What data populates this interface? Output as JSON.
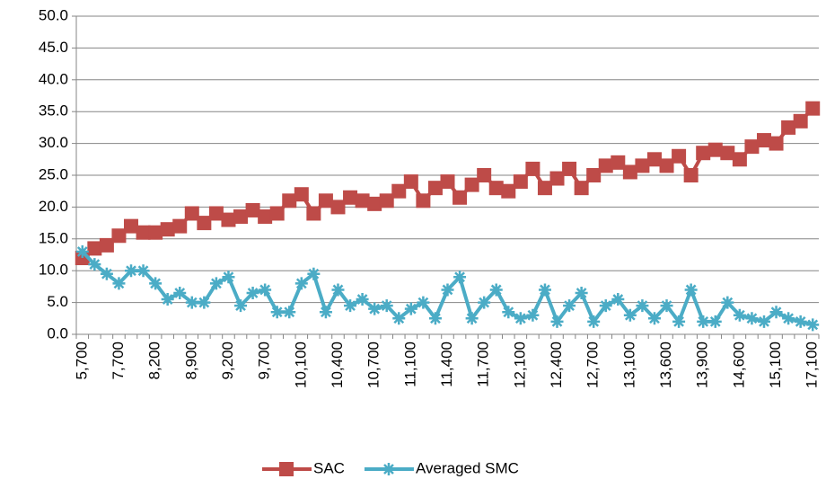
{
  "chart_data": {
    "type": "line",
    "categories": [
      "5,700",
      null,
      null,
      "7,700",
      null,
      null,
      "8,200",
      null,
      null,
      "8,900",
      null,
      null,
      "9,200",
      null,
      null,
      "9,700",
      null,
      null,
      "10,100",
      null,
      null,
      "10,400",
      null,
      null,
      "10,700",
      null,
      null,
      "11,100",
      null,
      null,
      "11,400",
      null,
      null,
      "11,700",
      null,
      null,
      "12,100",
      null,
      null,
      "12,400",
      null,
      null,
      "12,700",
      null,
      null,
      "13,100",
      null,
      null,
      "13,600",
      null,
      null,
      "13,900",
      null,
      null,
      "14,600",
      null,
      null,
      "15,100",
      null,
      null,
      "17,100"
    ],
    "series": [
      {
        "name": "SAC",
        "color": "#be4b48",
        "marker": "square",
        "values": [
          12,
          13.5,
          14,
          15.5,
          17,
          16,
          16,
          16.5,
          17,
          19,
          17.5,
          19,
          18,
          18.5,
          19.5,
          18.5,
          19,
          21,
          22,
          19,
          21,
          20,
          21.5,
          21,
          20.5,
          21,
          22.5,
          24,
          21,
          23,
          24,
          21.5,
          23.5,
          25,
          23,
          22.5,
          24,
          26,
          23,
          24.5,
          26,
          23,
          25,
          26.5,
          27,
          25.5,
          26.5,
          27.5,
          26.5,
          28,
          25,
          28.5,
          29,
          28.5,
          27.5,
          29.5,
          30.5,
          30,
          32.5,
          33.5,
          35.5
        ]
      },
      {
        "name": "Averaged SMC",
        "color": "#4bacc6",
        "marker": "star",
        "values": [
          13,
          11,
          9.5,
          8,
          10,
          10,
          8,
          5.5,
          6.5,
          5,
          5,
          8,
          9,
          4.5,
          6.5,
          7,
          3.5,
          3.5,
          8,
          9.5,
          3.5,
          7,
          4.5,
          5.5,
          4,
          4.5,
          2.5,
          4,
          5,
          2.5,
          7,
          9,
          2.5,
          5,
          7,
          3.5,
          2.5,
          3,
          7,
          2,
          4.5,
          6.5,
          2,
          4.5,
          5.5,
          3,
          4.5,
          2.5,
          4.5,
          2,
          7,
          2,
          2,
          5,
          3,
          2.5,
          2,
          3.5,
          2.5,
          2,
          1.5
        ]
      }
    ],
    "ylim": [
      0,
      50
    ],
    "yticks": [
      {
        "value": 0,
        "label": "0.0"
      },
      {
        "value": 5,
        "label": "5.0"
      },
      {
        "value": 10,
        "label": "10.0"
      },
      {
        "value": 15,
        "label": "15.0"
      },
      {
        "value": 20,
        "label": "20.0"
      },
      {
        "value": 25,
        "label": "25.0"
      },
      {
        "value": 30,
        "label": "30.0"
      },
      {
        "value": 35,
        "label": "35.0"
      },
      {
        "value": 40,
        "label": "40.0"
      },
      {
        "value": 45,
        "label": "45.0"
      },
      {
        "value": 50,
        "label": "50.0"
      }
    ],
    "grid": true,
    "legend": "bottom"
  }
}
